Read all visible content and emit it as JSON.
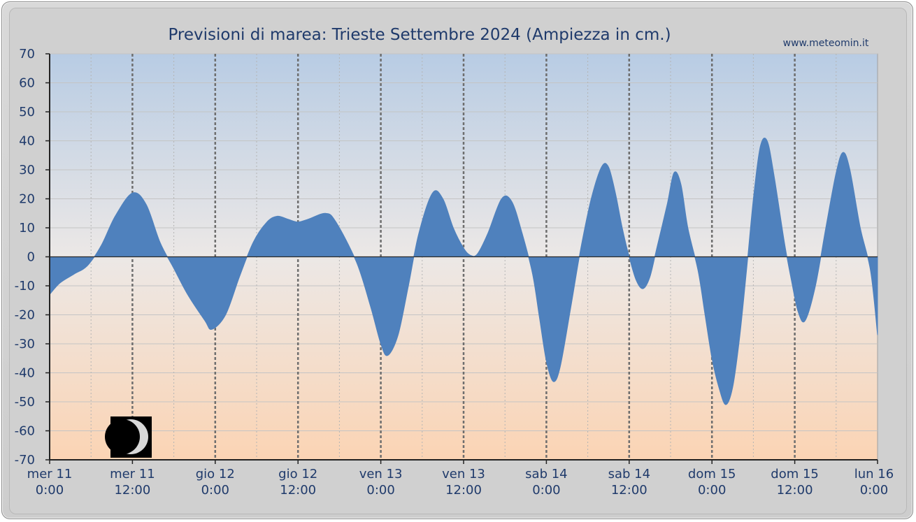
{
  "chart_data": {
    "type": "area",
    "title": "Previsioni di marea: Trieste Settembre 2024 (Ampiezza in cm.)",
    "source_label": "www.meteomin.it",
    "xlabel": "",
    "ylabel": "",
    "ylim": [
      -70,
      70
    ],
    "yticks": [
      70,
      60,
      50,
      40,
      30,
      20,
      10,
      0,
      -10,
      -20,
      -30,
      -40,
      -50,
      -60,
      -70
    ],
    "xlim_hours": [
      0,
      120
    ],
    "x_unit": "hours from mer 11 0:00",
    "xticks": [
      {
        "hours": 0,
        "day": "mer",
        "date": "11",
        "time": "0:00"
      },
      {
        "hours": 12,
        "day": "mer",
        "date": "11",
        "time": "12:00"
      },
      {
        "hours": 24,
        "day": "gio",
        "date": "12",
        "time": "0:00"
      },
      {
        "hours": 36,
        "day": "gio",
        "date": "12",
        "time": "12:00"
      },
      {
        "hours": 48,
        "day": "ven",
        "date": "13",
        "time": "0:00"
      },
      {
        "hours": 60,
        "day": "ven",
        "date": "13",
        "time": "12:00"
      },
      {
        "hours": 72,
        "day": "sab",
        "date": "14",
        "time": "0:00"
      },
      {
        "hours": 84,
        "day": "sab",
        "date": "14",
        "time": "12:00"
      },
      {
        "hours": 96,
        "day": "dom",
        "date": "15",
        "time": "0:00"
      },
      {
        "hours": 108,
        "day": "dom",
        "date": "15",
        "time": "12:00"
      },
      {
        "hours": 120,
        "day": "lun",
        "date": "16",
        "time": "0:00"
      }
    ],
    "grid": true,
    "moon_phase_icon": "first-quarter-moon-icon",
    "colors": {
      "series": "#4f81bd",
      "plot_top": "#b8cce4",
      "plot_mid": "#ece8e6",
      "plot_bottom": "#fbd4b4",
      "text": "#1f3a6b"
    },
    "series": [
      {
        "points": [
          [
            0,
            -13
          ],
          [
            1.5,
            -9
          ],
          [
            3.5,
            -6
          ],
          [
            5.5,
            -3
          ],
          [
            7.5,
            4
          ],
          [
            9.5,
            14
          ],
          [
            12,
            22
          ],
          [
            14,
            18
          ],
          [
            16,
            5
          ],
          [
            18,
            -4
          ],
          [
            20,
            -13
          ],
          [
            22.5,
            -22
          ],
          [
            23.5,
            -25
          ],
          [
            25.5,
            -20
          ],
          [
            27.5,
            -7
          ],
          [
            29.5,
            5
          ],
          [
            31.5,
            12
          ],
          [
            33,
            14
          ],
          [
            34.5,
            13
          ],
          [
            36,
            12
          ],
          [
            37.5,
            13
          ],
          [
            40,
            15
          ],
          [
            41.5,
            12
          ],
          [
            44.5,
            -2
          ],
          [
            46.5,
            -17
          ],
          [
            48,
            -30
          ],
          [
            49,
            -34
          ],
          [
            50.5,
            -27
          ],
          [
            52,
            -10
          ],
          [
            53.5,
            8
          ],
          [
            55.5,
            22
          ],
          [
            57,
            20
          ],
          [
            58.5,
            10
          ],
          [
            60,
            3
          ],
          [
            61,
            0.5
          ],
          [
            62,
            1
          ],
          [
            63.5,
            8
          ],
          [
            65.5,
            20
          ],
          [
            67,
            19
          ],
          [
            68.5,
            8
          ],
          [
            70,
            -6
          ],
          [
            71,
            -21
          ],
          [
            72,
            -36
          ],
          [
            73,
            -43
          ],
          [
            74,
            -38
          ],
          [
            75.5,
            -18
          ],
          [
            77,
            3
          ],
          [
            78.5,
            20
          ],
          [
            80,
            31
          ],
          [
            81,
            31
          ],
          [
            82,
            22
          ],
          [
            83,
            10
          ],
          [
            84,
            0
          ],
          [
            85,
            -8
          ],
          [
            86,
            -11
          ],
          [
            87,
            -7
          ],
          [
            88,
            3
          ],
          [
            89.5,
            18
          ],
          [
            90.5,
            29
          ],
          [
            91.5,
            25
          ],
          [
            92.5,
            10
          ],
          [
            94,
            -5
          ],
          [
            95,
            -20
          ],
          [
            96,
            -35
          ],
          [
            97,
            -45
          ],
          [
            98,
            -51
          ],
          [
            99,
            -45
          ],
          [
            100,
            -28
          ],
          [
            101,
            -5
          ],
          [
            102,
            20
          ],
          [
            103,
            38
          ],
          [
            104,
            40
          ],
          [
            105,
            28
          ],
          [
            106.5,
            5
          ],
          [
            107.5,
            -8
          ],
          [
            108.5,
            -19
          ],
          [
            109.5,
            -22
          ],
          [
            111,
            -10
          ],
          [
            112.5,
            10
          ],
          [
            114,
            29
          ],
          [
            115,
            36
          ],
          [
            116,
            30
          ],
          [
            117.5,
            10
          ],
          [
            119,
            -5
          ],
          [
            120,
            -27
          ]
        ]
      }
    ]
  }
}
